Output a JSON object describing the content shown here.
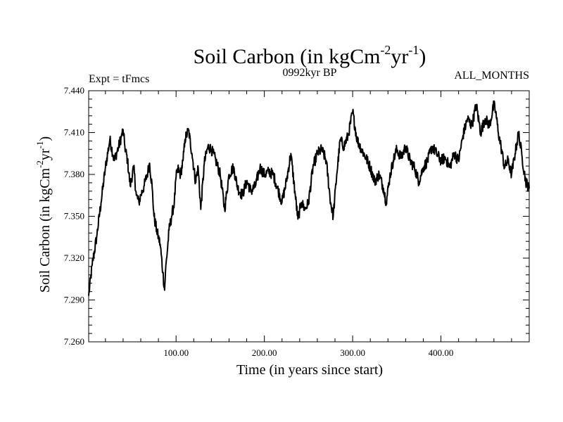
{
  "chart_data": {
    "type": "line",
    "title_base": "Soil Carbon (in kgCm",
    "title_exp1": "-2",
    "title_mid": "yr",
    "title_exp2": "-1",
    "title_end": ")",
    "subtitle_left": "Expt = tFmcs",
    "subtitle_center": "0992kyr BP",
    "subtitle_right": "ALL_MONTHS",
    "xlabel": "Time (in years since start)",
    "ylabel_base": "Soil Carbon (in kgCm",
    "ylabel_exp1": "-2",
    "ylabel_mid": "yr",
    "ylabel_exp2": "-1",
    "ylabel_end": ")",
    "xlim": [
      1,
      500
    ],
    "ylim": [
      7.26,
      7.44
    ],
    "xticks": [
      100,
      200,
      300,
      400
    ],
    "xtick_labels": [
      "100.00",
      "200.00",
      "300.00",
      "400.00"
    ],
    "yticks": [
      7.26,
      7.29,
      7.32,
      7.35,
      7.38,
      7.41,
      7.44
    ],
    "ytick_labels": [
      "7.260",
      "7.290",
      "7.320",
      "7.350",
      "7.380",
      "7.410",
      "7.440"
    ],
    "series": [
      {
        "name": "Soil Carbon",
        "x": [
          1,
          5,
          10,
          15,
          20,
          25,
          30,
          35,
          38,
          40,
          42,
          45,
          48,
          52,
          55,
          58,
          60,
          64,
          68,
          70,
          73,
          75,
          78,
          80,
          82,
          85,
          87,
          88,
          92,
          95,
          98,
          100,
          102,
          105,
          108,
          110,
          114,
          118,
          122,
          125,
          128,
          132,
          136,
          140,
          145,
          150,
          155,
          160,
          165,
          170,
          175,
          180,
          185,
          190,
          195,
          200,
          205,
          210,
          215,
          220,
          225,
          230,
          235,
          238,
          242,
          246,
          250,
          255,
          260,
          265,
          270,
          275,
          278,
          282,
          286,
          290,
          295,
          300,
          305,
          310,
          315,
          320,
          325,
          330,
          335,
          338,
          342,
          346,
          350,
          355,
          360,
          365,
          370,
          375,
          380,
          385,
          390,
          395,
          400,
          405,
          410,
          415,
          420,
          425,
          430,
          435,
          440,
          445,
          450,
          455,
          460,
          462,
          465,
          468,
          472,
          476,
          480,
          484,
          488,
          492,
          496,
          500
        ],
        "values": [
          7.293,
          7.315,
          7.335,
          7.36,
          7.385,
          7.405,
          7.39,
          7.4,
          7.407,
          7.412,
          7.4,
          7.39,
          7.372,
          7.385,
          7.365,
          7.36,
          7.365,
          7.372,
          7.382,
          7.388,
          7.37,
          7.35,
          7.34,
          7.335,
          7.33,
          7.31,
          7.297,
          7.31,
          7.34,
          7.35,
          7.36,
          7.378,
          7.384,
          7.38,
          7.39,
          7.405,
          7.412,
          7.395,
          7.375,
          7.385,
          7.355,
          7.388,
          7.4,
          7.398,
          7.39,
          7.38,
          7.355,
          7.38,
          7.385,
          7.37,
          7.365,
          7.375,
          7.368,
          7.372,
          7.385,
          7.38,
          7.382,
          7.38,
          7.37,
          7.36,
          7.375,
          7.395,
          7.365,
          7.348,
          7.36,
          7.355,
          7.36,
          7.385,
          7.395,
          7.398,
          7.39,
          7.36,
          7.35,
          7.38,
          7.405,
          7.4,
          7.408,
          7.425,
          7.405,
          7.398,
          7.392,
          7.385,
          7.375,
          7.38,
          7.37,
          7.36,
          7.378,
          7.39,
          7.398,
          7.392,
          7.4,
          7.39,
          7.385,
          7.375,
          7.385,
          7.39,
          7.4,
          7.395,
          7.39,
          7.392,
          7.385,
          7.395,
          7.39,
          7.408,
          7.42,
          7.415,
          7.43,
          7.41,
          7.42,
          7.415,
          7.43,
          7.425,
          7.41,
          7.4,
          7.385,
          7.39,
          7.38,
          7.395,
          7.41,
          7.392,
          7.375,
          7.37
        ]
      }
    ]
  }
}
